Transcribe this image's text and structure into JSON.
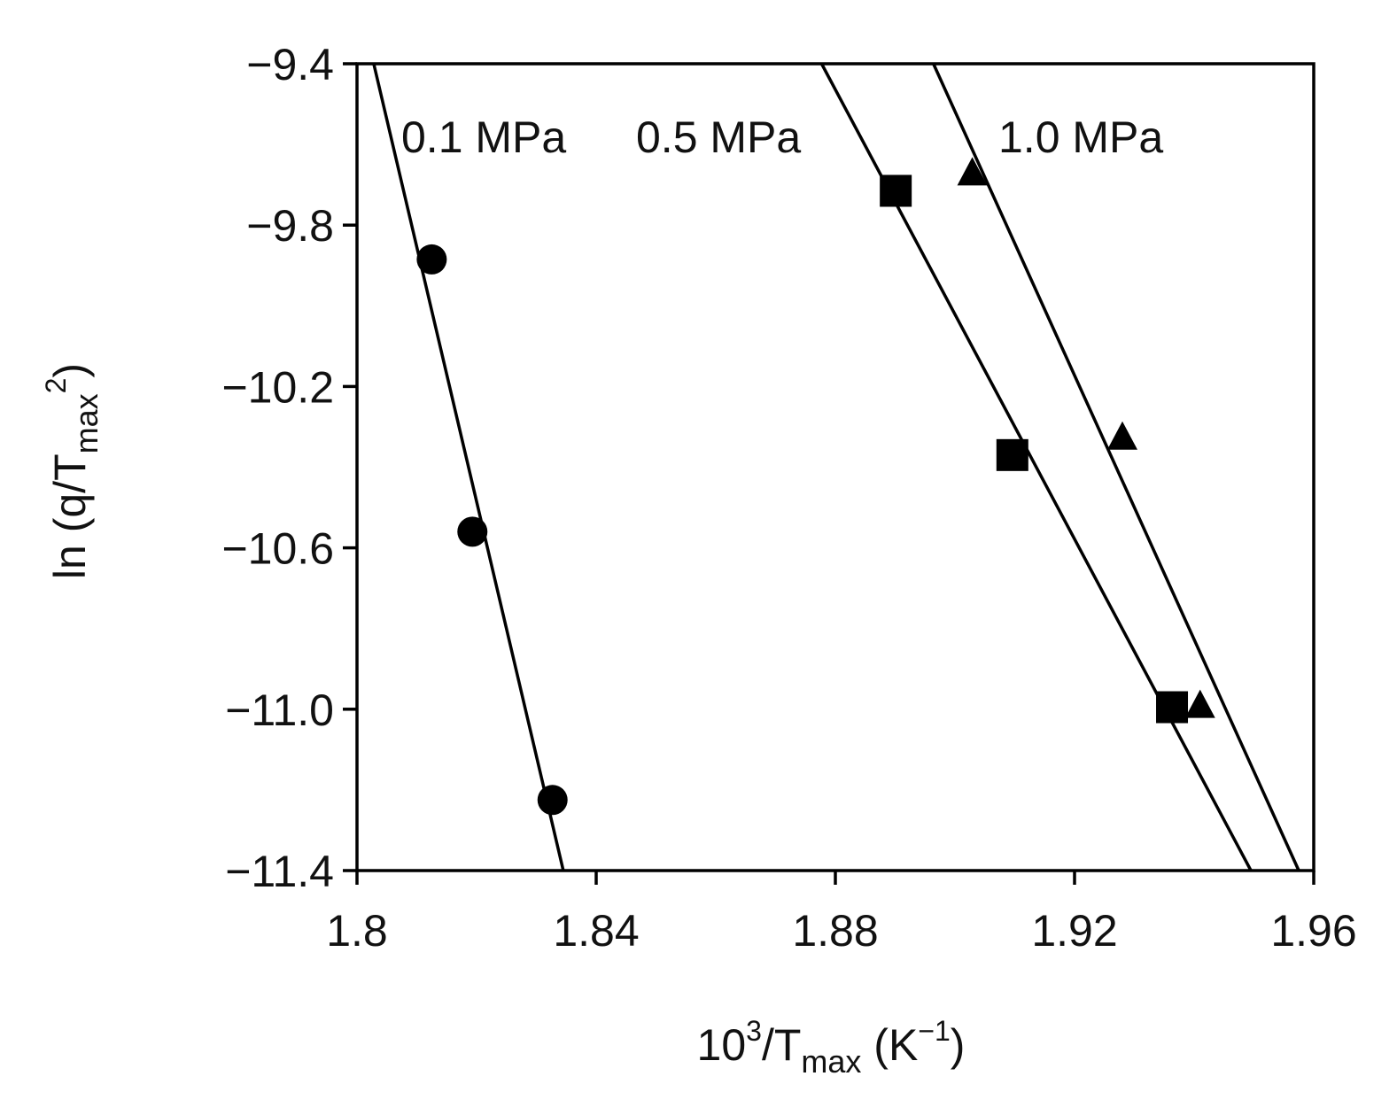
{
  "chart_data": {
    "type": "scatter",
    "title": "",
    "xlabel": {
      "base": "10",
      "sup": "3",
      "mid": "/T",
      "sub": "max",
      "end": " (K",
      "sup2": "−1",
      "close": ")"
    },
    "ylabel": {
      "pre": "ln (q/T",
      "sub": "max",
      "sup": "2",
      "close": ")"
    },
    "xlim": [
      1.8,
      1.96
    ],
    "ylim": [
      -11.4,
      -9.4
    ],
    "x_ticks": [
      1.8,
      1.84,
      1.88,
      1.92,
      1.96
    ],
    "x_tick_labels": [
      "1.8",
      "1.84",
      "1.88",
      "1.92",
      "1.96"
    ],
    "y_ticks": [
      -9.4,
      -9.8,
      -10.2,
      -10.6,
      -11.0,
      -11.4
    ],
    "y_tick_labels": [
      "−9.4",
      "−9.8",
      "−10.2",
      "−10.6",
      "−11.0",
      "−11.4"
    ],
    "grid": false,
    "series": [
      {
        "name": "0.1 MPa",
        "marker": "circle",
        "points": [
          [
            1.8125,
            -9.885
          ],
          [
            1.8193,
            -10.56
          ],
          [
            1.8327,
            -11.225
          ]
        ],
        "fit_line": [
          [
            1.8028,
            -9.4
          ],
          [
            1.8345,
            -11.4
          ]
        ]
      },
      {
        "name": "0.5 MPa",
        "marker": "square",
        "points": [
          [
            1.8901,
            -9.715
          ],
          [
            1.9096,
            -10.37
          ],
          [
            1.9363,
            -10.995
          ]
        ],
        "fit_line": [
          [
            1.8777,
            -9.4
          ],
          [
            1.9495,
            -11.4
          ]
        ]
      },
      {
        "name": "1.0 MPa",
        "marker": "triangle",
        "points": [
          [
            1.9029,
            -9.675
          ],
          [
            1.928,
            -10.33
          ],
          [
            1.941,
            -10.995
          ]
        ],
        "fit_line": [
          [
            1.8964,
            -9.4
          ],
          [
            1.9575,
            -11.4
          ]
        ]
      }
    ],
    "colors": {
      "ink": "#000000"
    }
  }
}
